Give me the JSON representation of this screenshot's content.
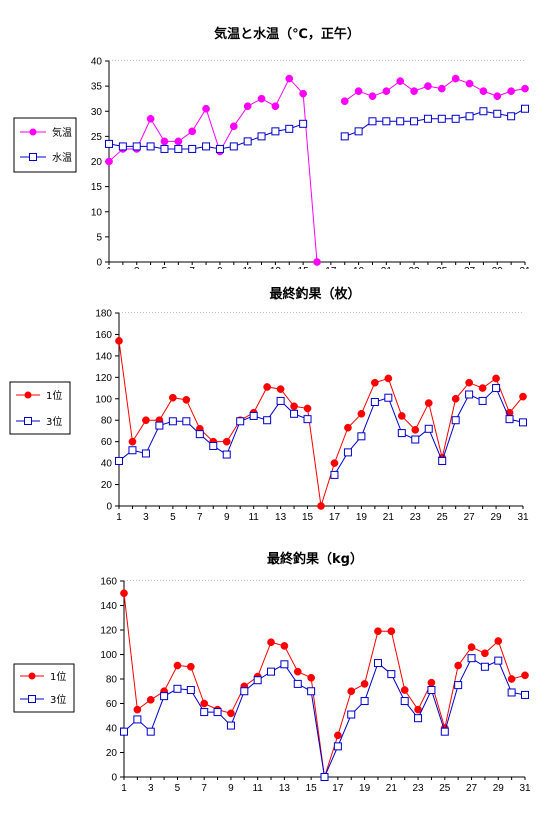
{
  "chart_data": [
    {
      "type": "line",
      "title": "気温と水温（℃，正午）",
      "ylim": [
        0,
        40
      ],
      "yticks": [
        0,
        5,
        10,
        15,
        20,
        25,
        30,
        35,
        40
      ],
      "x": [
        1,
        2,
        3,
        4,
        5,
        6,
        7,
        8,
        9,
        10,
        11,
        12,
        13,
        14,
        15,
        16,
        17,
        18,
        19,
        20,
        21,
        22,
        23,
        24,
        25,
        26,
        27,
        28,
        29,
        30,
        31
      ],
      "xtick_labels": [
        "1",
        "3",
        "5",
        "7",
        "9",
        "11",
        "13",
        "15",
        "17",
        "19",
        "21",
        "23",
        "25",
        "27",
        "29",
        "31"
      ],
      "grid": true,
      "legend_position": "left",
      "series": [
        {
          "name": "気温",
          "color": "#ff00ff",
          "marker": "filled-circle",
          "values": [
            20,
            22.5,
            22.5,
            28.5,
            24,
            24,
            26,
            30.5,
            22,
            27,
            31,
            32.5,
            31,
            36.5,
            33.5,
            0,
            null,
            32,
            34,
            33,
            34,
            36,
            34,
            35,
            34.5,
            36.5,
            35.5,
            34,
            33,
            34,
            34.5
          ]
        },
        {
          "name": "水温",
          "color": "#0000cc",
          "marker": "open-square",
          "values": [
            23.5,
            23,
            23,
            23,
            22.5,
            22.5,
            22.5,
            23,
            22.5,
            23,
            24,
            25,
            26,
            26.5,
            27.5,
            null,
            null,
            25,
            26,
            28,
            28,
            28,
            28,
            28.5,
            28.5,
            28.5,
            29,
            30,
            29.5,
            29,
            30.5
          ]
        }
      ]
    },
    {
      "type": "line",
      "title": "最終釣果（枚）",
      "ylim": [
        0,
        180
      ],
      "yticks": [
        0,
        20,
        40,
        60,
        80,
        100,
        120,
        140,
        160,
        180
      ],
      "x": [
        1,
        2,
        3,
        4,
        5,
        6,
        7,
        8,
        9,
        10,
        11,
        12,
        13,
        14,
        15,
        16,
        17,
        18,
        19,
        20,
        21,
        22,
        23,
        24,
        25,
        26,
        27,
        28,
        29,
        30,
        31
      ],
      "xtick_labels": [
        "1",
        "3",
        "5",
        "7",
        "9",
        "11",
        "13",
        "15",
        "17",
        "19",
        "21",
        "23",
        "25",
        "27",
        "29",
        "31"
      ],
      "grid": true,
      "legend_position": "left",
      "series": [
        {
          "name": "1位",
          "color": "#ff0000",
          "line_color": "#ff0000",
          "marker": "filled-circle",
          "values": [
            154,
            60,
            80,
            80,
            101,
            99,
            72,
            60,
            60,
            80,
            87,
            111,
            109,
            93,
            91,
            0,
            40,
            73,
            86,
            115,
            119,
            84,
            71,
            96,
            45,
            100,
            115,
            110,
            119,
            87,
            102
          ]
        },
        {
          "name": "3位",
          "color": "#0000cc",
          "line_color": "#0000cc",
          "marker": "open-square",
          "values": [
            42,
            52,
            49,
            75,
            79,
            79,
            67,
            56,
            48,
            79,
            84,
            80,
            98,
            86,
            81,
            null,
            29,
            50,
            65,
            97,
            101,
            68,
            62,
            72,
            42,
            80,
            104,
            98,
            110,
            81,
            78
          ]
        }
      ]
    },
    {
      "type": "line",
      "title": "最終釣果（kg）",
      "ylim": [
        0,
        160
      ],
      "yticks": [
        0,
        20,
        40,
        60,
        80,
        100,
        120,
        140,
        160
      ],
      "x": [
        1,
        2,
        3,
        4,
        5,
        6,
        7,
        8,
        9,
        10,
        11,
        12,
        13,
        14,
        15,
        16,
        17,
        18,
        19,
        20,
        21,
        22,
        23,
        24,
        25,
        26,
        27,
        28,
        29,
        30,
        31
      ],
      "xtick_labels": [
        "1",
        "3",
        "5",
        "7",
        "9",
        "11",
        "13",
        "15",
        "17",
        "19",
        "21",
        "23",
        "25",
        "27",
        "29",
        "31"
      ],
      "grid": true,
      "legend_position": "left",
      "series": [
        {
          "name": "1位",
          "color": "#ff0000",
          "line_color": "#ff0000",
          "marker": "filled-circle",
          "values": [
            150,
            55,
            63,
            70,
            91,
            90,
            60,
            55,
            52,
            74,
            82,
            110,
            107,
            86,
            81,
            0,
            34,
            70,
            76,
            119,
            119,
            71,
            55,
            77,
            40,
            91,
            106,
            101,
            111,
            80,
            83
          ]
        },
        {
          "name": "3位",
          "color": "#0000cc",
          "line_color": "#0000cc",
          "marker": "open-square",
          "values": [
            37,
            47,
            37,
            66,
            72,
            71,
            53,
            53,
            42,
            70,
            79,
            86,
            92,
            76,
            70,
            0,
            25,
            51,
            62,
            93,
            84,
            62,
            48,
            71,
            37,
            75,
            97,
            90,
            95,
            69,
            67
          ]
        }
      ]
    }
  ]
}
